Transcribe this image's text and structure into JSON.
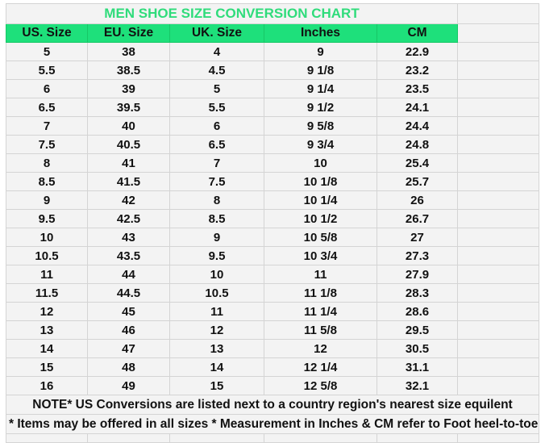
{
  "title": "MEN SHOE SIZE CONVERSION CHART",
  "colors": {
    "header_bg": "#1ee07b",
    "title_text": "#2fdc7b",
    "cell_bg": "#f3f3f3"
  },
  "headers": [
    "US. Size",
    "EU. Size",
    "UK. Size",
    "Inches",
    "CM"
  ],
  "rows": [
    [
      "5",
      "38",
      "4",
      "9",
      "22.9"
    ],
    [
      "5.5",
      "38.5",
      "4.5",
      "9 1/8",
      "23.2"
    ],
    [
      "6",
      "39",
      "5",
      "9 1/4",
      "23.5"
    ],
    [
      "6.5",
      "39.5",
      "5.5",
      "9 1/2",
      "24.1"
    ],
    [
      "7",
      "40",
      "6",
      "9 5/8",
      "24.4"
    ],
    [
      "7.5",
      "40.5",
      "6.5",
      "9 3/4",
      "24.8"
    ],
    [
      "8",
      "41",
      "7",
      "10",
      "25.4"
    ],
    [
      "8.5",
      "41.5",
      "7.5",
      "10 1/8",
      "25.7"
    ],
    [
      "9",
      "42",
      "8",
      "10 1/4",
      "26"
    ],
    [
      "9.5",
      "42.5",
      "8.5",
      "10 1/2",
      "26.7"
    ],
    [
      "10",
      "43",
      "9",
      "10 5/8",
      "27"
    ],
    [
      "10.5",
      "43.5",
      "9.5",
      "10 3/4",
      "27.3"
    ],
    [
      "11",
      "44",
      "10",
      "11",
      "27.9"
    ],
    [
      "11.5",
      "44.5",
      "10.5",
      "11 1/8",
      "28.3"
    ],
    [
      "12",
      "45",
      "11",
      "11 1/4",
      "28.6"
    ],
    [
      "13",
      "46",
      "12",
      "11 5/8",
      "29.5"
    ],
    [
      "14",
      "47",
      "13",
      "12",
      "30.5"
    ],
    [
      "15",
      "48",
      "14",
      "12 1/4",
      "31.1"
    ],
    [
      "16",
      "49",
      "15",
      "12 5/8",
      "32.1"
    ]
  ],
  "note1": "NOTE* US Conversions are listed next to a country region's nearest size equilent",
  "note2": "* Items may be offered in all sizes * Measurement in Inches & CM refer to Foot heel-to-toe"
}
